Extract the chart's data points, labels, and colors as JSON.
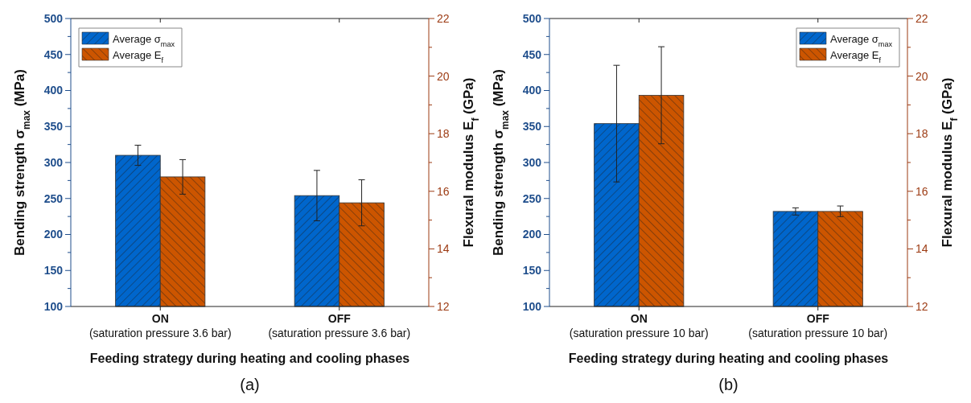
{
  "chart_data": [
    {
      "type": "bar",
      "xlabel": "Feeding strategy during heating and cooling phases",
      "ylabel": "Bending strength σ$_{max}$ (MPa)",
      "y2label": "Flexural modulus E$_{f}$ (GPa)",
      "annotations": [
        "(a)"
      ],
      "categories": [
        "ON\n(saturation pressure 3.6 bar)",
        "OFF\n(saturation pressure 3.6 bar)"
      ],
      "series": [
        {
          "name": "Average σ$_{max}$",
          "color": "#0066cc",
          "values": [
            310,
            254
          ],
          "errors": [
            [
              296,
              324
            ],
            [
              219,
              289
            ]
          ]
        },
        {
          "name": "Average E$_{f}$",
          "color": "#cc5500",
          "axis": "y2",
          "values": [
            16.5,
            15.6
          ],
          "errors": [
            [
              15.9,
              17.1
            ],
            [
              14.8,
              16.4
            ]
          ]
        }
      ],
      "ylim": [
        100,
        500
      ],
      "yticks": [
        100,
        {
          "value": 125,
          "label": null
        },
        150,
        {
          "value": 175,
          "label": null
        },
        200,
        {
          "value": 225,
          "label": null
        },
        250,
        {
          "value": 275,
          "label": null
        },
        300,
        {
          "value": 325,
          "label": null
        },
        350,
        {
          "value": 375,
          "label": null
        },
        400,
        {
          "value": 425,
          "label": null
        },
        450,
        {
          "value": 475,
          "label": null
        },
        500
      ],
      "y2lim": [
        12,
        22
      ],
      "y2ticks": [
        12,
        {
          "value": 13,
          "label": null
        },
        14,
        {
          "value": 15,
          "label": null
        },
        16,
        {
          "value": 17,
          "label": null
        },
        18,
        {
          "value": 19,
          "label": null
        },
        20,
        {
          "value": 21,
          "label": null
        },
        22
      ],
      "legend": "top left"
    },
    {
      "type": "bar",
      "xlabel": "Feeding strategy during heating and cooling phases",
      "ylabel": "Bending strength σ$_{max}$ (MPa)",
      "y2label": "Flexural modulus E$_{f}$ (GPa)",
      "annotations": [
        "(b)"
      ],
      "categories": [
        "ON\n(saturation pressure 10 bar)",
        "OFF\n(saturation pressure 10 bar)"
      ],
      "series": [
        {
          "name": "Average σ$_{max}$",
          "color": "#0066cc",
          "values": [
            354,
            232
          ],
          "errors": [
            [
              273,
              435
            ],
            [
              227,
              237
            ]
          ]
        },
        {
          "name": "Average E$_{f}$",
          "color": "#cc5500",
          "axis": "y2",
          "values": [
            19.33,
            15.3
          ],
          "errors": [
            [
              17.65,
              21.02
            ],
            [
              15.12,
              15.49
            ]
          ]
        }
      ],
      "ylim": [
        100,
        500
      ],
      "yticks": [
        100,
        {
          "value": 125,
          "label": null
        },
        150,
        {
          "value": 175,
          "label": null
        },
        200,
        {
          "value": 225,
          "label": null
        },
        250,
        {
          "value": 275,
          "label": null
        },
        300,
        {
          "value": 325,
          "label": null
        },
        350,
        {
          "value": 375,
          "label": null
        },
        400,
        {
          "value": 425,
          "label": null
        },
        450,
        {
          "value": 475,
          "label": null
        },
        500
      ],
      "y2lim": [
        12,
        22
      ],
      "y2ticks": [
        12,
        {
          "value": 13,
          "label": null
        },
        14,
        {
          "value": 15,
          "label": null
        },
        16,
        {
          "value": 17,
          "label": null
        },
        18,
        {
          "value": 19,
          "label": null
        },
        20,
        {
          "value": 21,
          "label": null
        },
        22
      ],
      "legend": "top right"
    }
  ]
}
